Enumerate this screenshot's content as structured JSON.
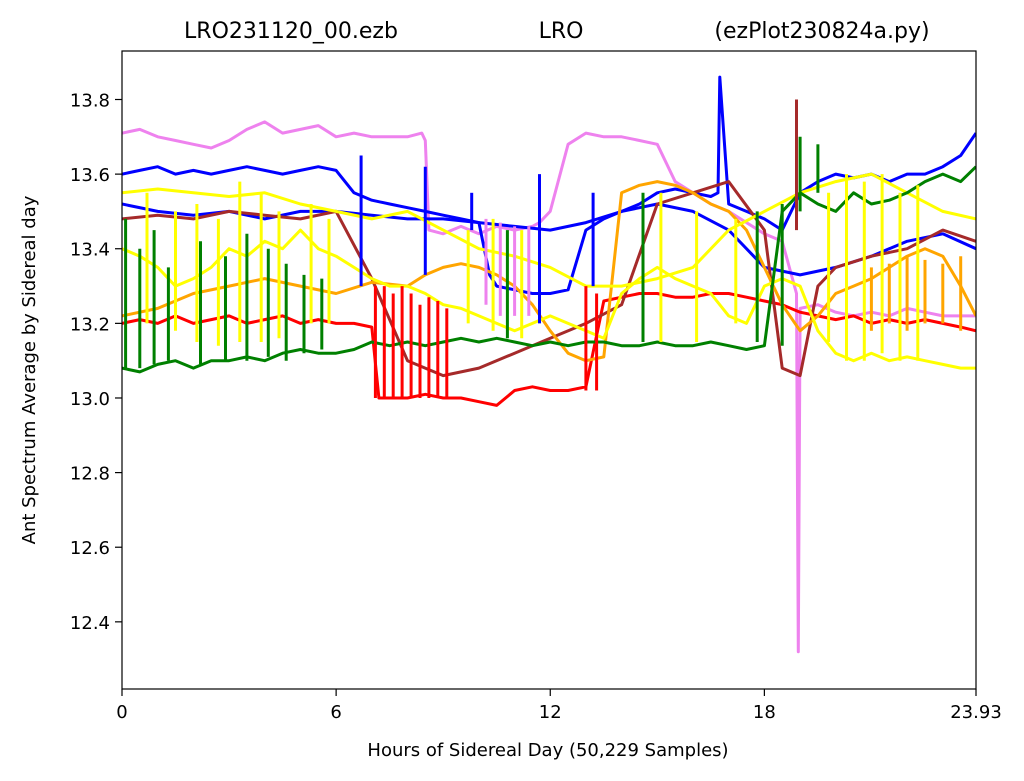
{
  "title": {
    "left": "LRO231120_00.ezb",
    "center": "LRO",
    "right": "(ezPlot230824a.py)"
  },
  "chart_data": {
    "type": "line",
    "xlabel": "Hours of Sidereal Day  (50,229 Samples)",
    "ylabel": "Ant Spectrum Average by Sidereal day",
    "xlim": [
      0,
      23.93
    ],
    "ylim": [
      12.22,
      13.93
    ],
    "xticks": [
      0,
      6,
      12,
      18,
      23.93
    ],
    "xtick_labels": [
      "0",
      "6",
      "12",
      "18",
      "23.93"
    ],
    "yticks": [
      12.4,
      12.6,
      12.8,
      13.0,
      13.2,
      13.4,
      13.6,
      13.8
    ],
    "ytick_labels": [
      "12.4",
      "12.6",
      "12.8",
      "13.0",
      "13.2",
      "13.4",
      "13.6",
      "13.8"
    ],
    "grid": false,
    "legend": "none",
    "series": [
      {
        "color": "#ee82ee",
        "x": [
          0,
          0.5,
          1,
          1.5,
          2,
          2.5,
          3,
          3.5,
          4,
          4.5,
          5,
          5.5,
          6,
          6.5,
          7,
          7.5,
          8,
          8.4,
          8.5,
          8.6,
          9,
          9.5,
          10,
          10.5,
          11,
          11.5,
          11.7,
          12,
          12.5,
          13,
          13.5,
          14,
          14.5,
          15,
          15.5,
          16,
          16.5,
          17,
          17.5,
          18,
          18.5,
          18.9,
          18.95,
          19,
          19.5,
          20,
          20.5,
          21,
          21.5,
          22,
          22.5,
          23,
          23.5,
          23.93
        ],
        "y": [
          13.71,
          13.72,
          13.7,
          13.69,
          13.68,
          13.67,
          13.69,
          13.72,
          13.74,
          13.71,
          13.72,
          13.73,
          13.7,
          13.71,
          13.7,
          13.7,
          13.7,
          13.71,
          13.69,
          13.45,
          13.44,
          13.46,
          13.44,
          13.46,
          13.45,
          13.46,
          13.47,
          13.5,
          13.68,
          13.71,
          13.7,
          13.7,
          13.69,
          13.68,
          13.58,
          13.55,
          13.52,
          13.5,
          13.47,
          13.44,
          13.42,
          13.28,
          12.32,
          13.24,
          13.25,
          13.23,
          13.22,
          13.23,
          13.22,
          13.24,
          13.23,
          13.22,
          13.22,
          13.22
        ]
      },
      {
        "color": "#0000ff",
        "x": [
          0,
          0.5,
          1,
          1.5,
          2,
          2.5,
          3,
          3.5,
          4,
          4.5,
          5,
          5.5,
          6,
          6.5,
          7,
          7.5,
          8,
          8.5,
          9,
          9.5,
          10,
          10.3,
          10.5,
          11,
          11.5,
          12,
          12.5,
          13,
          13.5,
          14,
          14.5,
          15,
          15.5,
          16,
          16.5,
          16.7,
          16.75,
          17,
          17.5,
          18,
          18.5,
          19,
          19.5,
          20,
          20.5,
          21,
          21.5,
          22,
          22.5,
          23,
          23.5,
          23.93
        ],
        "y": [
          13.6,
          13.61,
          13.62,
          13.6,
          13.61,
          13.6,
          13.61,
          13.62,
          13.61,
          13.6,
          13.61,
          13.62,
          13.61,
          13.55,
          13.53,
          13.52,
          13.51,
          13.5,
          13.49,
          13.48,
          13.47,
          13.33,
          13.3,
          13.29,
          13.28,
          13.28,
          13.29,
          13.45,
          13.48,
          13.5,
          13.52,
          13.55,
          13.56,
          13.55,
          13.54,
          13.55,
          13.86,
          13.52,
          13.5,
          13.48,
          13.45,
          13.55,
          13.58,
          13.6,
          13.59,
          13.6,
          13.58,
          13.6,
          13.6,
          13.62,
          13.65,
          13.71
        ]
      },
      {
        "color": "#0000ff",
        "x": [
          0,
          1,
          2,
          3,
          4,
          5,
          6,
          7,
          8,
          9,
          10,
          11,
          12,
          13,
          14,
          15,
          16,
          17,
          18,
          19,
          20,
          21,
          22,
          23,
          23.93
        ],
        "y": [
          13.52,
          13.5,
          13.49,
          13.5,
          13.48,
          13.5,
          13.5,
          13.49,
          13.48,
          13.48,
          13.47,
          13.46,
          13.45,
          13.47,
          13.5,
          13.52,
          13.5,
          13.45,
          13.35,
          13.33,
          13.35,
          13.38,
          13.42,
          13.44,
          13.4
        ]
      },
      {
        "color": "#ff0000",
        "x": [
          0,
          0.5,
          1,
          1.5,
          2,
          2.5,
          3,
          3.5,
          4,
          4.5,
          5,
          5.5,
          6,
          6.5,
          7,
          7.2,
          7.5,
          8,
          8.5,
          9,
          9.5,
          10,
          10.5,
          11,
          11.5,
          12,
          12.5,
          13,
          13.5,
          14,
          14.5,
          15,
          15.5,
          16,
          16.5,
          17,
          17.5,
          18,
          18.5,
          19,
          19.5,
          20,
          20.5,
          21,
          21.5,
          22,
          22.5,
          23,
          23.5,
          23.93
        ],
        "y": [
          13.2,
          13.21,
          13.2,
          13.22,
          13.2,
          13.21,
          13.22,
          13.2,
          13.21,
          13.22,
          13.2,
          13.21,
          13.2,
          13.2,
          13.19,
          13.0,
          13.0,
          13.0,
          13.01,
          13.0,
          13.0,
          12.99,
          12.98,
          13.02,
          13.03,
          13.02,
          13.02,
          13.03,
          13.26,
          13.27,
          13.28,
          13.28,
          13.27,
          13.27,
          13.28,
          13.28,
          13.27,
          13.26,
          13.25,
          13.23,
          13.22,
          13.21,
          13.22,
          13.2,
          13.21,
          13.2,
          13.21,
          13.2,
          13.19,
          13.18
        ]
      },
      {
        "color": "#a52a2a",
        "x": [
          0,
          1,
          2,
          3,
          4,
          5,
          6,
          7,
          8,
          9,
          10,
          11,
          12,
          13,
          14,
          15,
          16,
          17,
          18,
          18.5,
          19,
          19.5,
          20,
          21,
          22,
          23,
          23.93
        ],
        "y": [
          13.48,
          13.49,
          13.48,
          13.5,
          13.49,
          13.48,
          13.5,
          13.32,
          13.1,
          13.06,
          13.08,
          13.12,
          13.16,
          13.2,
          13.25,
          13.52,
          13.55,
          13.58,
          13.45,
          13.08,
          13.06,
          13.3,
          13.35,
          13.38,
          13.4,
          13.45,
          13.42
        ]
      },
      {
        "color": "#ffa500",
        "x": [
          0,
          1,
          2,
          3,
          4,
          5,
          6,
          7,
          8,
          8.5,
          9,
          9.5,
          10,
          10.5,
          11,
          11.5,
          12,
          12.5,
          13,
          13.5,
          14,
          14.5,
          15,
          15.5,
          16,
          16.5,
          17,
          17.5,
          18,
          18.5,
          19,
          19.5,
          20,
          20.5,
          21,
          21.5,
          22,
          22.5,
          23,
          23.5,
          23.93
        ],
        "y": [
          13.22,
          13.24,
          13.28,
          13.3,
          13.32,
          13.3,
          13.28,
          13.31,
          13.3,
          13.33,
          13.35,
          13.36,
          13.35,
          13.33,
          13.3,
          13.25,
          13.18,
          13.12,
          13.1,
          13.11,
          13.55,
          13.57,
          13.58,
          13.57,
          13.55,
          13.52,
          13.5,
          13.45,
          13.35,
          13.25,
          13.18,
          13.22,
          13.28,
          13.3,
          13.32,
          13.35,
          13.38,
          13.4,
          13.38,
          13.3,
          13.22
        ]
      },
      {
        "color": "#ffff00",
        "x": [
          0,
          0.5,
          1,
          1.5,
          2,
          2.5,
          3,
          3.5,
          4,
          4.5,
          5,
          5.5,
          6,
          6.5,
          7,
          7.5,
          8,
          8.5,
          9,
          9.5,
          10,
          10.5,
          11,
          11.5,
          12,
          12.5,
          13,
          13.5,
          14,
          14.5,
          15,
          15.5,
          16,
          16.5,
          17,
          17.5,
          18,
          18.5,
          19,
          19.5,
          20,
          20.5,
          21,
          21.5,
          22,
          22.5,
          23,
          23.5,
          23.93
        ],
        "y": [
          13.4,
          13.38,
          13.35,
          13.3,
          13.32,
          13.35,
          13.4,
          13.38,
          13.42,
          13.4,
          13.45,
          13.4,
          13.38,
          13.35,
          13.32,
          13.3,
          13.3,
          13.28,
          13.25,
          13.24,
          13.22,
          13.2,
          13.18,
          13.2,
          13.22,
          13.2,
          13.18,
          13.16,
          13.28,
          13.32,
          13.35,
          13.32,
          13.3,
          13.28,
          13.22,
          13.2,
          13.3,
          13.32,
          13.3,
          13.18,
          13.12,
          13.1,
          13.12,
          13.1,
          13.11,
          13.1,
          13.09,
          13.08,
          13.08
        ]
      },
      {
        "color": "#ffff00",
        "x": [
          0,
          1,
          2,
          3,
          4,
          5,
          6,
          7,
          8,
          9,
          10,
          11,
          12,
          13,
          14,
          15,
          16,
          17,
          18,
          19,
          20,
          21,
          22,
          23,
          23.93
        ],
        "y": [
          13.55,
          13.56,
          13.55,
          13.54,
          13.55,
          13.52,
          13.5,
          13.48,
          13.5,
          13.45,
          13.4,
          13.38,
          13.35,
          13.3,
          13.3,
          13.32,
          13.35,
          13.45,
          13.5,
          13.55,
          13.58,
          13.6,
          13.55,
          13.5,
          13.48
        ]
      },
      {
        "color": "#008000",
        "x": [
          0,
          0.5,
          1,
          1.5,
          2,
          2.5,
          3,
          3.5,
          4,
          4.5,
          5,
          5.5,
          6,
          6.5,
          7,
          7.5,
          8,
          8.5,
          9,
          9.5,
          10,
          10.5,
          11,
          11.5,
          12,
          12.5,
          13,
          13.5,
          14,
          14.5,
          15,
          15.5,
          16,
          16.5,
          17,
          17.5,
          18,
          18.5,
          19,
          19.5,
          20,
          20.5,
          21,
          21.5,
          22,
          22.5,
          23,
          23.5,
          23.93
        ],
        "y": [
          13.08,
          13.07,
          13.09,
          13.1,
          13.08,
          13.1,
          13.1,
          13.11,
          13.1,
          13.12,
          13.13,
          13.12,
          13.12,
          13.13,
          13.15,
          13.14,
          13.15,
          13.14,
          13.15,
          13.16,
          13.15,
          13.16,
          13.15,
          13.14,
          13.15,
          13.14,
          13.15,
          13.15,
          13.14,
          13.14,
          13.15,
          13.14,
          13.14,
          13.15,
          13.14,
          13.13,
          13.14,
          13.5,
          13.55,
          13.52,
          13.5,
          13.55,
          13.52,
          13.53,
          13.55,
          13.58,
          13.6,
          13.58,
          13.62
        ]
      }
    ],
    "spikes": [
      {
        "color": "#008000",
        "x": [
          0.1,
          0.5,
          0.9,
          1.3,
          2.2,
          2.9,
          3.5,
          4.1,
          4.6,
          5.1,
          5.6,
          10.8,
          14.6,
          17.8,
          18.5,
          19.0,
          19.5
        ],
        "y0": [
          13.08,
          13.08,
          13.09,
          13.1,
          13.09,
          13.1,
          13.1,
          13.11,
          13.1,
          13.12,
          13.13,
          13.16,
          13.15,
          13.15,
          13.14,
          13.5,
          13.55
        ],
        "y1": [
          13.48,
          13.4,
          13.45,
          13.35,
          13.42,
          13.38,
          13.44,
          13.4,
          13.36,
          13.33,
          13.32,
          13.45,
          13.55,
          13.5,
          13.52,
          13.7,
          13.68
        ]
      },
      {
        "color": "#ffff00",
        "x": [
          0.7,
          1.5,
          2.1,
          2.7,
          3.3,
          3.9,
          4.4,
          5.3,
          5.8,
          9.7,
          10.4,
          11.2,
          15.1,
          16.1,
          17.2,
          19.8,
          20.3,
          20.8,
          21.3,
          21.8,
          22.3
        ],
        "y0": [
          13.2,
          13.18,
          13.15,
          13.14,
          13.15,
          13.15,
          13.16,
          13.2,
          13.2,
          13.2,
          13.18,
          13.16,
          13.15,
          13.15,
          13.2,
          13.15,
          13.1,
          13.1,
          13.12,
          13.1,
          13.1
        ],
        "y1": [
          13.55,
          13.5,
          13.52,
          13.48,
          13.58,
          13.55,
          13.5,
          13.52,
          13.48,
          13.45,
          13.48,
          13.45,
          13.55,
          13.5,
          13.48,
          13.55,
          13.6,
          13.58,
          13.6,
          13.55,
          13.57
        ]
      },
      {
        "color": "#ff0000",
        "x": [
          7.1,
          7.35,
          7.6,
          7.85,
          8.1,
          8.35,
          8.6,
          8.85,
          9.1,
          13.0,
          13.3
        ],
        "y0": [
          13.0,
          13.0,
          13.0,
          13.0,
          13.0,
          13.0,
          13.0,
          13.0,
          13.0,
          13.02,
          13.02
        ],
        "y1": [
          13.3,
          13.3,
          13.28,
          13.3,
          13.28,
          13.25,
          13.27,
          13.26,
          13.24,
          13.3,
          13.28
        ]
      },
      {
        "color": "#a52a2a",
        "x": [
          18.9
        ],
        "y0": [
          13.45
        ],
        "y1": [
          13.8
        ]
      },
      {
        "color": "#ee82ee",
        "x": [
          10.2,
          10.6,
          11.0,
          11.4
        ],
        "y0": [
          13.25,
          13.22,
          13.22,
          13.22
        ],
        "y1": [
          13.48,
          13.47,
          13.46,
          13.46
        ]
      },
      {
        "color": "#0000ff",
        "x": [
          6.7,
          8.5,
          9.8,
          11.7,
          13.2
        ],
        "y0": [
          13.3,
          13.33,
          13.45,
          13.2,
          13.3
        ],
        "y1": [
          13.65,
          13.62,
          13.55,
          13.6,
          13.55
        ]
      },
      {
        "color": "#ffa500",
        "x": [
          21.0,
          21.5,
          22.0,
          22.5,
          23.0,
          23.5
        ],
        "y0": [
          13.18,
          13.2,
          13.18,
          13.2,
          13.2,
          13.18
        ],
        "y1": [
          13.35,
          13.36,
          13.38,
          13.37,
          13.36,
          13.38
        ]
      }
    ]
  }
}
